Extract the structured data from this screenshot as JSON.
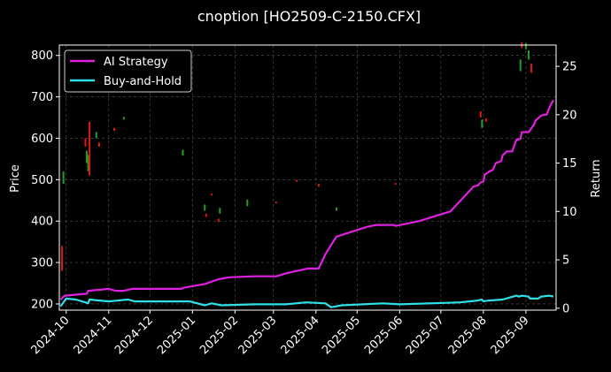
{
  "chart_data": {
    "type": "line",
    "title": "cnoption [HO2509-C-2150.CFX]",
    "xlabel": "",
    "ylabel": "Price",
    "y2label": "Return",
    "x_tick_labels": [
      "2024-10",
      "2024-11",
      "2024-12",
      "2025-01",
      "2025-02",
      "2025-03",
      "2025-04",
      "2025-05",
      "2025-06",
      "2025-07",
      "2025-08",
      "2025-09"
    ],
    "x_tick_dates": [
      "2024-10-01",
      "2024-11-01",
      "2024-12-01",
      "2025-01-01",
      "2025-02-01",
      "2025-03-01",
      "2025-04-01",
      "2025-05-01",
      "2025-06-01",
      "2025-07-01",
      "2025-08-01",
      "2025-09-01"
    ],
    "xlim": [
      "2024-09-26",
      "2025-09-23"
    ],
    "ylim": [
      185,
      825
    ],
    "y_ticks": [
      200,
      300,
      400,
      500,
      600,
      700,
      800
    ],
    "y2lim": [
      -0.2,
      27.2
    ],
    "y2_ticks": [
      0,
      5,
      10,
      15,
      20,
      25
    ],
    "grid": true,
    "legend_placement": "top-left",
    "colors": {
      "background": "#000000",
      "ai": "#e020e0",
      "bh": "#2fe0e8",
      "up": "#20a020",
      "down": "#e01818",
      "grid": "#555555",
      "text": "#ffffff"
    },
    "series": [
      {
        "name": "AI Strategy",
        "axis": "Return",
        "points": [
          [
            "2024-09-27",
            0.9
          ],
          [
            "2024-09-30",
            1.3
          ],
          [
            "2024-10-08",
            1.4
          ],
          [
            "2024-10-16",
            1.5
          ],
          [
            "2024-10-17",
            1.8
          ],
          [
            "2024-10-25",
            1.9
          ],
          [
            "2024-11-01",
            2.0
          ],
          [
            "2024-11-06",
            1.8
          ],
          [
            "2024-11-12",
            1.8
          ],
          [
            "2024-11-18",
            2.0
          ],
          [
            "2024-12-01",
            2.0
          ],
          [
            "2024-12-24",
            2.0
          ],
          [
            "2024-12-25",
            2.1
          ],
          [
            "2025-01-10",
            2.5
          ],
          [
            "2025-01-20",
            3.0
          ],
          [
            "2025-01-28",
            3.2
          ],
          [
            "2025-02-15",
            3.3
          ],
          [
            "2025-03-03",
            3.3
          ],
          [
            "2025-03-10",
            3.6
          ],
          [
            "2025-03-26",
            4.1
          ],
          [
            "2025-04-03",
            4.1
          ],
          [
            "2025-04-08",
            5.6
          ],
          [
            "2025-04-15",
            7.2
          ],
          [
            "2025-04-16",
            7.4
          ],
          [
            "2025-05-08",
            8.4
          ],
          [
            "2025-05-15",
            8.6
          ],
          [
            "2025-05-28",
            8.6
          ],
          [
            "2025-05-29",
            8.5
          ],
          [
            "2025-06-15",
            9.0
          ],
          [
            "2025-07-01",
            9.7
          ],
          [
            "2025-07-08",
            10.0
          ],
          [
            "2025-07-25",
            12.6
          ],
          [
            "2025-07-28",
            12.7
          ],
          [
            "2025-07-30",
            13.0
          ],
          [
            "2025-08-01",
            13.1
          ],
          [
            "2025-08-02",
            13.8
          ],
          [
            "2025-08-05",
            14.1
          ],
          [
            "2025-08-08",
            14.3
          ],
          [
            "2025-08-10",
            15.0
          ],
          [
            "2025-08-14",
            15.2
          ],
          [
            "2025-08-15",
            15.8
          ],
          [
            "2025-08-18",
            16.2
          ],
          [
            "2025-08-22",
            16.2
          ],
          [
            "2025-08-25",
            17.4
          ],
          [
            "2025-08-28",
            17.5
          ],
          [
            "2025-08-29",
            18.2
          ],
          [
            "2025-09-03",
            18.2
          ],
          [
            "2025-09-05",
            18.6
          ],
          [
            "2025-09-07",
            19.0
          ],
          [
            "2025-09-08",
            19.4
          ],
          [
            "2025-09-12",
            19.9
          ],
          [
            "2025-09-14",
            20.0
          ],
          [
            "2025-09-16",
            20.0
          ],
          [
            "2025-09-19",
            21.0
          ],
          [
            "2025-09-21",
            21.5
          ]
        ]
      },
      {
        "name": "Buy-and-Hold",
        "axis": "Return",
        "points": [
          [
            "2024-09-27",
            0.2
          ],
          [
            "2024-10-01",
            1.0
          ],
          [
            "2024-10-08",
            0.9
          ],
          [
            "2024-10-15",
            0.6
          ],
          [
            "2024-10-17",
            0.5
          ],
          [
            "2024-10-18",
            0.9
          ],
          [
            "2024-11-01",
            0.7
          ],
          [
            "2024-11-15",
            0.9
          ],
          [
            "2024-11-20",
            0.7
          ],
          [
            "2024-12-30",
            0.7
          ],
          [
            "2025-01-10",
            0.3
          ],
          [
            "2025-01-15",
            0.5
          ],
          [
            "2025-01-22",
            0.3
          ],
          [
            "2025-02-15",
            0.4
          ],
          [
            "2025-03-10",
            0.4
          ],
          [
            "2025-03-25",
            0.6
          ],
          [
            "2025-04-08",
            0.5
          ],
          [
            "2025-04-12",
            0.1
          ],
          [
            "2025-04-20",
            0.3
          ],
          [
            "2025-05-20",
            0.5
          ],
          [
            "2025-06-01",
            0.4
          ],
          [
            "2025-07-15",
            0.6
          ],
          [
            "2025-07-28",
            0.8
          ],
          [
            "2025-07-31",
            0.9
          ],
          [
            "2025-08-01",
            0.7
          ],
          [
            "2025-08-05",
            0.8
          ],
          [
            "2025-08-15",
            0.9
          ],
          [
            "2025-08-20",
            1.1
          ],
          [
            "2025-08-25",
            1.3
          ],
          [
            "2025-08-27",
            1.2
          ],
          [
            "2025-08-29",
            1.3
          ],
          [
            "2025-09-03",
            1.2
          ],
          [
            "2025-09-04",
            1.0
          ],
          [
            "2025-09-10",
            1.0
          ],
          [
            "2025-09-12",
            1.2
          ],
          [
            "2025-09-18",
            1.3
          ],
          [
            "2025-09-21",
            1.2
          ]
        ]
      }
    ],
    "candles": [
      {
        "date": "2024-09-28",
        "low": 280,
        "high": 340,
        "dir": "down"
      },
      {
        "date": "2024-09-29",
        "low": 490,
        "high": 520,
        "dir": "up"
      },
      {
        "date": "2024-10-15",
        "low": 580,
        "high": 600,
        "dir": "down"
      },
      {
        "date": "2024-10-16",
        "low": 540,
        "high": 570,
        "dir": "up"
      },
      {
        "date": "2024-10-17",
        "low": 520,
        "high": 560,
        "dir": "up"
      },
      {
        "date": "2024-10-18",
        "low": 510,
        "high": 640,
        "dir": "down"
      },
      {
        "date": "2024-10-23",
        "low": 600,
        "high": 615,
        "dir": "up"
      },
      {
        "date": "2024-10-25",
        "low": 580,
        "high": 590,
        "dir": "down"
      },
      {
        "date": "2024-11-05",
        "low": 618,
        "high": 625,
        "dir": "down"
      },
      {
        "date": "2024-11-12",
        "low": 645,
        "high": 652,
        "dir": "up"
      },
      {
        "date": "2024-12-25",
        "low": 558,
        "high": 572,
        "dir": "up"
      },
      {
        "date": "2025-01-10",
        "low": 425,
        "high": 440,
        "dir": "up"
      },
      {
        "date": "2025-01-11",
        "low": 410,
        "high": 418,
        "dir": "down"
      },
      {
        "date": "2025-01-15",
        "low": 462,
        "high": 466,
        "dir": "down"
      },
      {
        "date": "2025-01-20",
        "low": 398,
        "high": 406,
        "dir": "down"
      },
      {
        "date": "2025-01-21",
        "low": 418,
        "high": 432,
        "dir": "up"
      },
      {
        "date": "2025-02-10",
        "low": 436,
        "high": 452,
        "dir": "up"
      },
      {
        "date": "2025-03-03",
        "low": 443,
        "high": 447,
        "dir": "down"
      },
      {
        "date": "2025-03-18",
        "low": 495,
        "high": 499,
        "dir": "down"
      },
      {
        "date": "2025-04-03",
        "low": 483,
        "high": 490,
        "dir": "down"
      },
      {
        "date": "2025-04-16",
        "low": 425,
        "high": 433,
        "dir": "up"
      },
      {
        "date": "2025-05-29",
        "low": 488,
        "high": 492,
        "dir": "down"
      },
      {
        "date": "2025-07-30",
        "low": 650,
        "high": 665,
        "dir": "down"
      },
      {
        "date": "2025-07-31",
        "low": 625,
        "high": 645,
        "dir": "up"
      },
      {
        "date": "2025-08-03",
        "low": 640,
        "high": 648,
        "dir": "down"
      },
      {
        "date": "2025-08-28",
        "low": 762,
        "high": 790,
        "dir": "up"
      },
      {
        "date": "2025-08-29",
        "low": 818,
        "high": 832,
        "dir": "down"
      },
      {
        "date": "2025-09-01",
        "low": 815,
        "high": 830,
        "dir": "up"
      },
      {
        "date": "2025-09-03",
        "low": 790,
        "high": 812,
        "dir": "up"
      },
      {
        "date": "2025-09-05",
        "low": 758,
        "high": 780,
        "dir": "down"
      }
    ]
  }
}
